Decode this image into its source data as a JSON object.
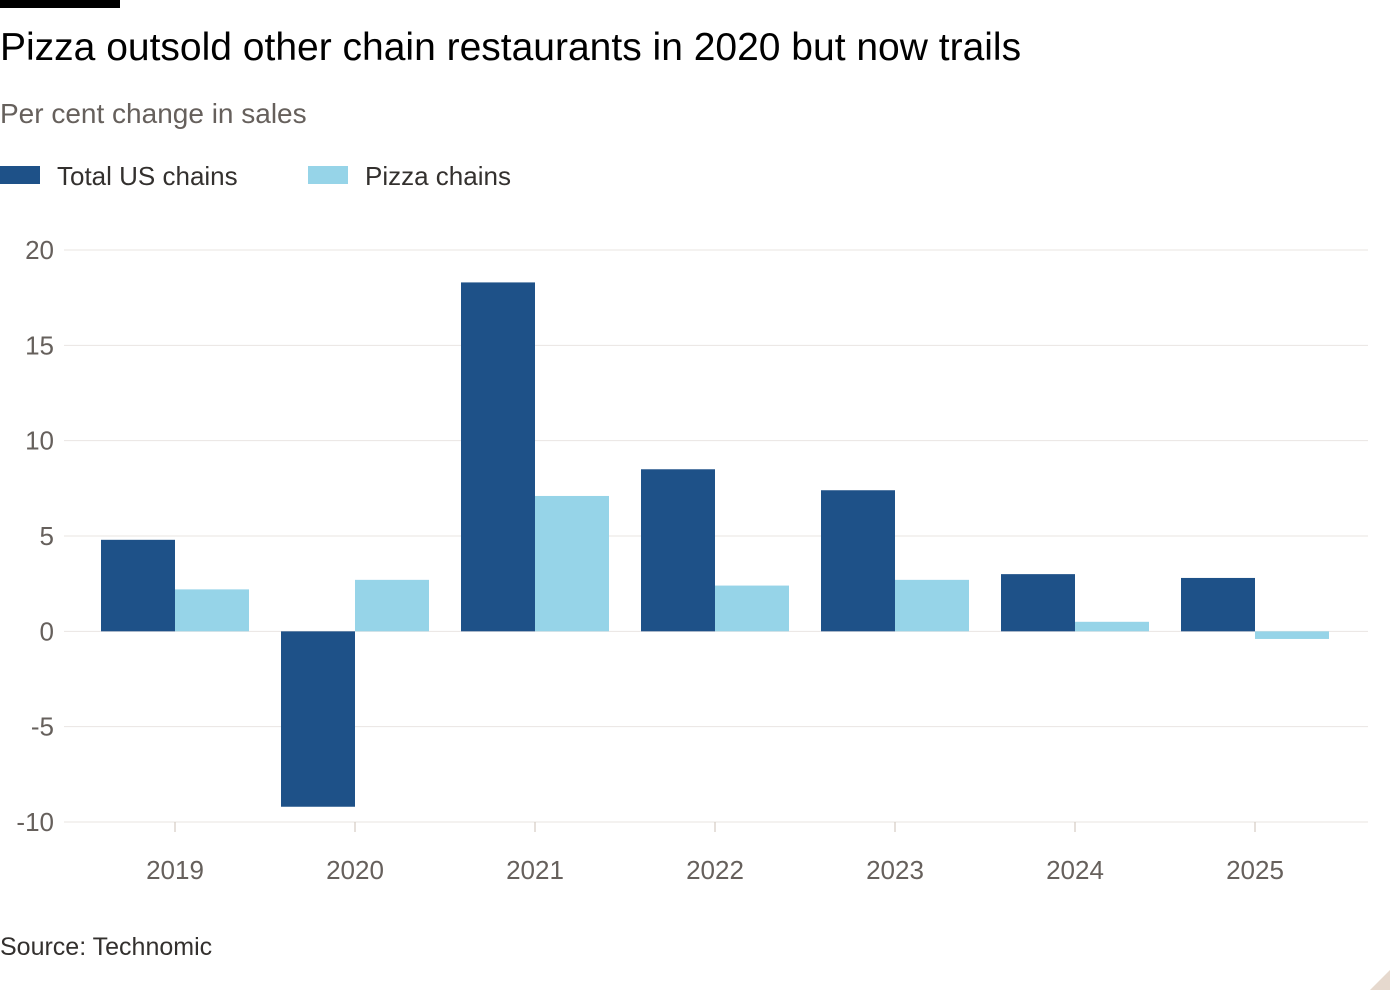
{
  "chart_data": {
    "type": "bar",
    "title": "Pizza outsold other chain restaurants in 2020 but now trails",
    "subtitle": "Per cent change in sales",
    "categories": [
      "2019",
      "2020",
      "2021",
      "2022",
      "2023",
      "2024",
      "2025"
    ],
    "series": [
      {
        "name": "Total US chains",
        "color": "#1e5188",
        "values": [
          4.8,
          -9.2,
          18.3,
          8.5,
          7.4,
          3.0,
          2.8
        ]
      },
      {
        "name": "Pizza chains",
        "color": "#96d4e8",
        "values": [
          2.2,
          2.7,
          7.1,
          2.4,
          2.7,
          0.5,
          -0.4
        ]
      }
    ],
    "ylim": [
      -10,
      20
    ],
    "yticks": [
      20,
      15,
      10,
      5,
      0,
      -5,
      -10
    ],
    "grid": true,
    "legend_position": "top-left"
  },
  "source": "Source: Technomic"
}
